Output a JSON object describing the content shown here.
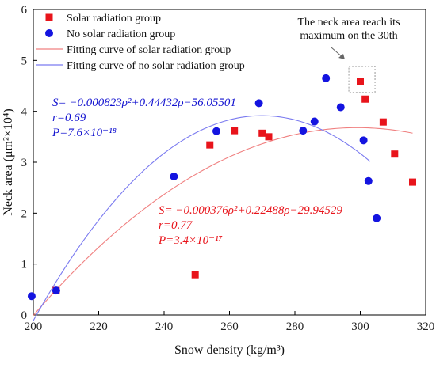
{
  "chart_data": {
    "type": "scatter",
    "xlabel": "Snow density (kg/m³)",
    "ylabel": "Neck area (μm²×10⁴)",
    "xlim": [
      200,
      320
    ],
    "ylim": [
      0,
      6
    ],
    "xticks": [
      200,
      220,
      240,
      260,
      280,
      300,
      320
    ],
    "yticks": [
      0,
      1,
      2,
      3,
      4,
      5,
      6
    ],
    "grid": false,
    "legend_position": "top-left",
    "series": [
      {
        "name": "Solar radiation group",
        "kind": "scatter",
        "marker": "square",
        "color": "#e8141b",
        "points": [
          [
            207,
            0.48
          ],
          [
            249.5,
            0.79
          ],
          [
            254,
            3.34
          ],
          [
            261.5,
            3.62
          ],
          [
            270,
            3.57
          ],
          [
            272,
            3.5
          ],
          [
            300,
            4.58
          ],
          [
            301.5,
            4.24
          ],
          [
            307,
            3.79
          ],
          [
            310.5,
            3.16
          ],
          [
            316,
            2.61
          ]
        ]
      },
      {
        "name": "No solar radiation group",
        "kind": "scatter",
        "marker": "circle",
        "color": "#1414e0",
        "points": [
          [
            199.5,
            0.37
          ],
          [
            207,
            0.48
          ],
          [
            243,
            2.72
          ],
          [
            256,
            3.61
          ],
          [
            269,
            4.16
          ],
          [
            282.5,
            3.62
          ],
          [
            286,
            3.8
          ],
          [
            289.5,
            4.65
          ],
          [
            294,
            4.08
          ],
          [
            301,
            3.43
          ],
          [
            302.5,
            2.63
          ],
          [
            305,
            1.9
          ]
        ]
      },
      {
        "name": "Fitting curve of solar radiation group",
        "kind": "curve",
        "color": "#f08080",
        "coefficients": {
          "a": -0.000376,
          "b": 0.22488,
          "c": -29.94529
        },
        "domain": [
          200,
          316
        ]
      },
      {
        "name": "Fitting curve of no solar radiation group",
        "kind": "curve",
        "color": "#7b7bf0",
        "coefficients": {
          "a": -0.000823,
          "b": 0.44432,
          "c": -56.05501
        },
        "domain": [
          200,
          303
        ]
      }
    ],
    "annotations": [
      {
        "lines": [
          "The neck area reach its",
          "maximum on the 30th"
        ],
        "color": "#111111"
      }
    ],
    "equations": [
      {
        "lines": [
          "S= −0.000823ρ²+0.44432ρ−56.05501",
          "r=0.69",
          "P=7.6×10⁻¹⁸"
        ],
        "color": "#1414d0"
      },
      {
        "lines": [
          "S= −0.000376ρ²+0.22488ρ−29.94529",
          "r=0.77",
          "P=3.4×10⁻¹⁷"
        ],
        "color": "#e8141b"
      }
    ]
  }
}
